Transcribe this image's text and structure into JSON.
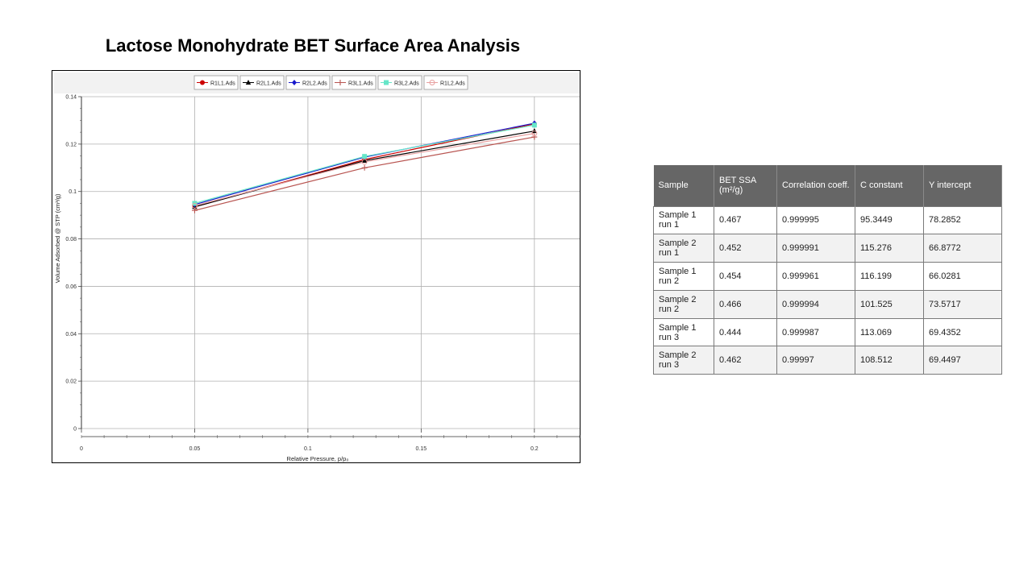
{
  "slide": {
    "title": "Lactose Monohydrate BET Surface Area Analysis"
  },
  "chart_data": {
    "type": "line",
    "title": "",
    "xlabel": "Relative Pressure, p/p₀",
    "ylabel": "Volume Adsorbed @ STP (cm³/g)",
    "xlim": [
      0,
      0.22
    ],
    "ylim": [
      0,
      0.14
    ],
    "x_ticks": [
      "0",
      "0.05",
      "0.1",
      "0.15",
      "0.2"
    ],
    "y_ticks": [
      "0",
      "0.02",
      "0.04",
      "0.06",
      "0.08",
      "0.1",
      "0.12",
      "0.14"
    ],
    "grid": true,
    "legend_position": "top",
    "x": [
      0.05,
      0.125,
      0.2
    ],
    "series": [
      {
        "name": "R1L1.Ads",
        "values": [
          0.0935,
          0.1135,
          0.1285
        ],
        "color": "#cc0000",
        "marker": "circle"
      },
      {
        "name": "R2L1.Ads",
        "values": [
          0.0935,
          0.113,
          0.1255
        ],
        "color": "#000000",
        "marker": "triangle"
      },
      {
        "name": "R2L2.Ads",
        "values": [
          0.0945,
          0.1145,
          0.1288
        ],
        "color": "#1a1acc",
        "marker": "diamond"
      },
      {
        "name": "R3L1.Ads",
        "values": [
          0.092,
          0.11,
          0.123
        ],
        "color": "#b85450",
        "marker": "plus"
      },
      {
        "name": "R3L2.Ads",
        "values": [
          0.095,
          0.1148,
          0.128
        ],
        "color": "#66e6c8",
        "marker": "square"
      },
      {
        "name": "R1L2.Ads",
        "values": [
          0.094,
          0.1125,
          0.1245
        ],
        "color": "#e8a0a0",
        "marker": "open-circle"
      }
    ]
  },
  "table": {
    "headers": [
      "Sample",
      "BET SSA (m²/g)",
      "Correlation coeff.",
      "C constant",
      "Y intercept"
    ],
    "rows": [
      [
        "Sample 1 run 1",
        "0.467",
        "0.999995",
        "95.3449",
        "78.2852"
      ],
      [
        "Sample 2 run 1",
        "0.452",
        "0.999991",
        "115.276",
        "66.8772"
      ],
      [
        "Sample 1 run 2",
        "0.454",
        "0.999961",
        "116.199",
        "66.0281"
      ],
      [
        "Sample 2 run 2",
        "0.466",
        "0.999994",
        "101.525",
        "73.5717"
      ],
      [
        "Sample 1 run 3",
        "0.444",
        "0.999987",
        "113.069",
        "69.4352"
      ],
      [
        "Sample 2 run 3",
        "0.462",
        "0.99997",
        "108.512",
        "69.4497"
      ]
    ]
  }
}
